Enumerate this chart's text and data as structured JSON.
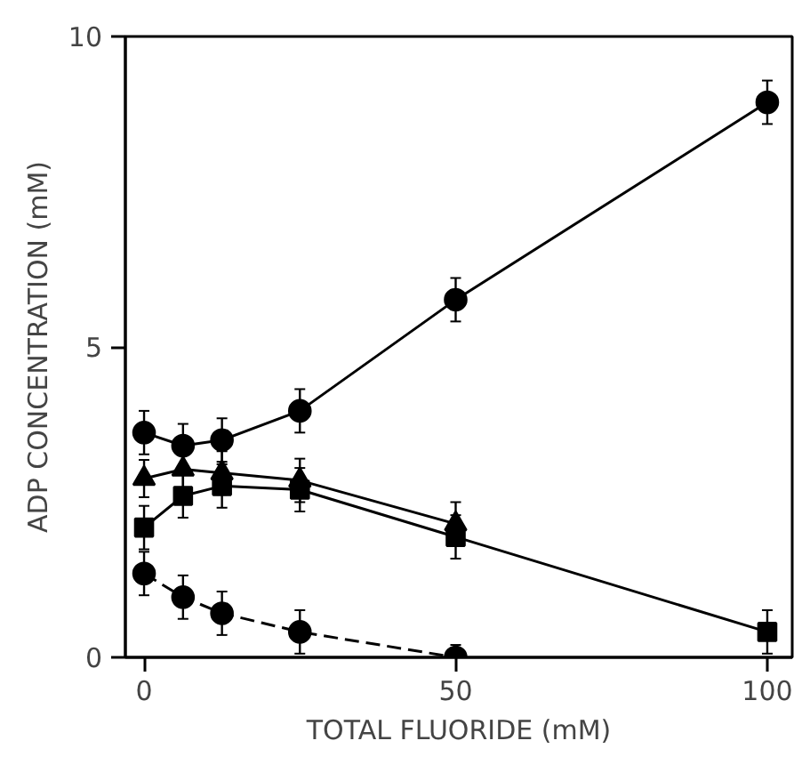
{
  "chart_data": {
    "type": "line",
    "xlabel": "TOTAL FLUORIDE (mM)",
    "ylabel": "ADP CONCENTRATION (mM)",
    "x": [
      0,
      6.25,
      12.5,
      25,
      50,
      100
    ],
    "xlim": [
      -3,
      104
    ],
    "ylim": [
      0,
      10
    ],
    "xticks": [
      0,
      50,
      100
    ],
    "yticks": [
      0,
      5,
      10
    ],
    "grid": false,
    "series": [
      {
        "color": "#000000",
        "marker": "circle",
        "line_style": "solid",
        "values": [
          3.62,
          3.41,
          3.5,
          3.97,
          5.76,
          8.94
        ],
        "errors": [
          0.35,
          0.35,
          0.35,
          0.35,
          0.35,
          0.35
        ]
      },
      {
        "color": "#000000",
        "marker": "triangle",
        "line_style": "solid",
        "values": [
          2.88,
          3.03,
          2.97,
          2.85,
          2.15,
          null
        ],
        "errors": [
          0.3,
          0.35,
          0.35,
          0.35,
          0.35,
          null
        ]
      },
      {
        "color": "#000000",
        "marker": "square",
        "line_style": "solid",
        "values": [
          2.09,
          2.6,
          2.76,
          2.7,
          1.94,
          0.41
        ],
        "errors": [
          0.35,
          0.35,
          0.35,
          0.35,
          0.35,
          0.35
        ]
      },
      {
        "color": "#000000",
        "marker": "circle",
        "line_style": "dashed",
        "values": [
          1.35,
          0.97,
          0.71,
          0.41,
          0.0
        ],
        "x": [
          0,
          6.25,
          12.5,
          25,
          50
        ],
        "errors": [
          0.35,
          0.35,
          0.35,
          0.35,
          0.2
        ]
      }
    ]
  }
}
